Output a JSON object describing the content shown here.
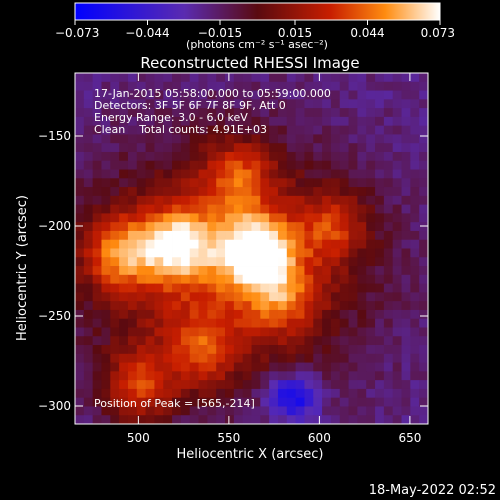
{
  "chart_data": {
    "type": "heatmap",
    "title": "Reconstructed RHESSI Image",
    "xlabel": "Heliocentric X (arcsec)",
    "ylabel": "Heliocentric Y (arcsec)",
    "x_ticks": [
      500,
      550,
      600,
      650
    ],
    "y_ticks": [
      -150,
      -200,
      -250,
      -300
    ],
    "xlim": [
      465,
      660
    ],
    "ylim": [
      -310,
      -115
    ],
    "colorbar": {
      "min": -0.073,
      "max": 0.073,
      "ticks": [
        -0.073,
        -0.044,
        -0.015,
        0.015,
        0.044,
        0.073
      ],
      "tick_labels": [
        "−0.073",
        "−0.044",
        "−0.015",
        "0.015",
        "0.044",
        "0.073"
      ],
      "unit_label": "(photons cm⁻² s⁻¹ asec⁻²)",
      "colors": [
        "#0000ff",
        "#5a2bb0",
        "#5a0a10",
        "#c81e00",
        "#ff8c10",
        "#ffffff"
      ]
    },
    "annotations": [
      "17-Jan-2015 05:58:00.000 to 05:59:00.000",
      "Detectors: 3F 5F 6F 7F 8F 9F, Att 0",
      "Energy Range: 3.0 - 6.0 keV",
      "Clean    Total counts: 4.91E+03"
    ],
    "peak_label": "Position of Peak = [565,-214]",
    "peak": [
      565,
      -214
    ],
    "sources": [
      {
        "x": 565,
        "y": -214,
        "amp": 0.073
      },
      {
        "x": 522,
        "y": -210,
        "amp": 0.058
      },
      {
        "x": 490,
        "y": -215,
        "amp": 0.05
      },
      {
        "x": 555,
        "y": -172,
        "amp": 0.04
      },
      {
        "x": 608,
        "y": -200,
        "amp": 0.035
      },
      {
        "x": 500,
        "y": -290,
        "amp": 0.045
      },
      {
        "x": 535,
        "y": -270,
        "amp": 0.035
      },
      {
        "x": 580,
        "y": -240,
        "amp": 0.035
      }
    ]
  },
  "timestamp": "18-May-2022 02:52"
}
